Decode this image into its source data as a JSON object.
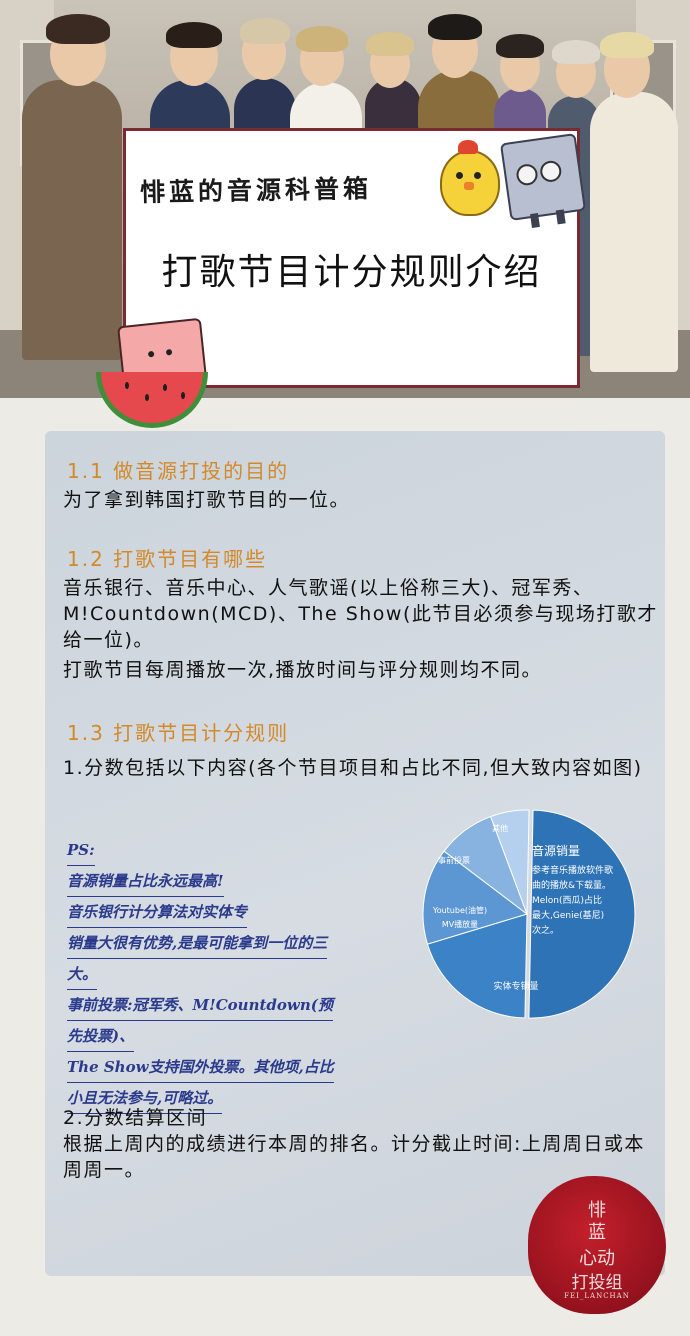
{
  "header": {
    "series_title": "悱蓝的音源科普箱",
    "main_title": "打歌节目计分规则介绍"
  },
  "sections": [
    {
      "heading": "1.1  做音源打投的目的",
      "paragraphs": [
        "为了拿到韩国打歌节目的一位。"
      ]
    },
    {
      "heading": "1.2  打歌节目有哪些",
      "paragraphs": [
        "音乐银行、音乐中心、人气歌谣(以上俗称三大)、冠军秀、M!Countdown(MCD)、The Show(此节目必须参与现场打歌才给一位)。",
        "打歌节目每周播放一次,播放时间与评分规则均不同。"
      ]
    },
    {
      "heading": "1.3  打歌节目计分规则",
      "paragraphs": [
        "1.分数包括以下内容(各个节目项目和占比不同,但大致内容如图)"
      ]
    }
  ],
  "ps_notes": [
    "PS:",
    "音源销量占比永远最高!",
    "音乐银行计分算法对实体专",
    "销量大很有优势,是最可能拿到一位的三",
    "大。",
    "事前投票:冠军秀、M!Countdown(预",
    "先投票)、",
    "The Show支持国外投票。其他项,占比",
    "小且无法参与,可略过。"
  ],
  "chart_data": {
    "type": "pie",
    "title": "",
    "slices": [
      {
        "label": "音源销量",
        "value": 50,
        "note": "参考音乐播放软件歌曲的播放&下载量。Melon(西瓜)占比最大,Genie(基尼)次之。",
        "color": "#2f73b7"
      },
      {
        "label": "实体专销量",
        "value": 20,
        "color": "#3b82c6"
      },
      {
        "label": "Youtube(油管)MV播放量",
        "value": 15,
        "color": "#5c97d3"
      },
      {
        "label": "事前投票",
        "value": 9,
        "color": "#88b3e0"
      },
      {
        "label": "其他",
        "value": 6,
        "color": "#b5cfee"
      }
    ]
  },
  "settlement": {
    "heading": "2.分数结算区间",
    "text": "根据上周内的成绩进行本周的排名。计分截止时间:上周周日或本周周一。"
  },
  "seal": {
    "line1": "悱",
    "line2": "蓝",
    "line3": "心动",
    "line4": "打投组",
    "line5": "FEI_LANCHAN"
  }
}
